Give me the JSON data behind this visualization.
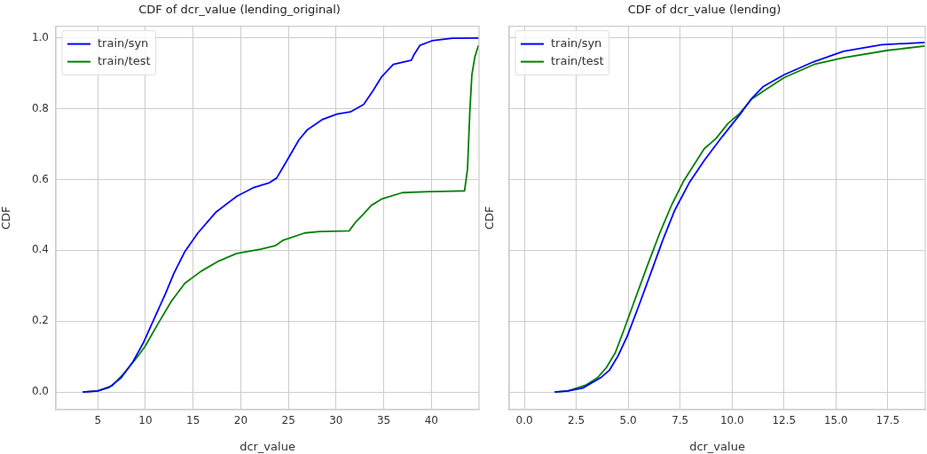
{
  "chart_data": [
    {
      "type": "line",
      "title": "CDF of dcr_value (lending_original)",
      "xlabel": "dcr_value",
      "ylabel": "CDF",
      "xlim": [
        0.6,
        45.0
      ],
      "ylim": [
        -0.05,
        1.033
      ],
      "xticks": [
        5,
        10,
        15,
        20,
        25,
        30,
        35,
        40
      ],
      "yticks": [
        {
          "value": 0,
          "label": "0.0"
        },
        {
          "value": 0.2,
          "label": "0.2"
        },
        {
          "value": 0.4,
          "label": "0.4"
        },
        {
          "value": 0.6,
          "label": "0.6"
        },
        {
          "value": 0.8,
          "label": "0.8"
        },
        {
          "value": 1,
          "label": "1.0"
        }
      ],
      "grid": true,
      "legend": "top left",
      "marker": "none",
      "line_style": "solid",
      "series": [
        {
          "name": "train/syn",
          "color": "#0000ff",
          "x": [
            3.42,
            5.0,
            6.2,
            7.45,
            8.7,
            9.8,
            10.56,
            12.1,
            13.0,
            14.1,
            15.5,
            17.4,
            19.6,
            21.4,
            23.0,
            23.76,
            24.85,
            26.1,
            27.0,
            28.6,
            30.1,
            31.5,
            32.9,
            33.85,
            34.8,
            36.0,
            37.9,
            38.2,
            38.8,
            40.06,
            42.2,
            44.97
          ],
          "values": [
            0,
            0.003,
            0.013,
            0.04,
            0.086,
            0.14,
            0.186,
            0.278,
            0.336,
            0.395,
            0.449,
            0.508,
            0.553,
            0.578,
            0.591,
            0.604,
            0.654,
            0.712,
            0.741,
            0.77,
            0.785,
            0.791,
            0.812,
            0.85,
            0.891,
            0.925,
            0.937,
            0.954,
            0.979,
            0.992,
            0.999,
            1.0
          ]
        },
        {
          "name": "train/test",
          "color": "#008000",
          "x": [
            3.42,
            5.0,
            6.52,
            7.76,
            9.0,
            9.94,
            11.34,
            12.73,
            14.13,
            15.84,
            17.7,
            19.56,
            22.05,
            23.6,
            24.4,
            26.7,
            28.26,
            31.37,
            32.0,
            32.9,
            33.7,
            34.78,
            36.96,
            39.75,
            43.48,
            43.79,
            44.04,
            44.25,
            44.56,
            44.94
          ],
          "values": [
            0,
            0.003,
            0.018,
            0.053,
            0.094,
            0.128,
            0.194,
            0.257,
            0.307,
            0.341,
            0.37,
            0.391,
            0.403,
            0.413,
            0.428,
            0.449,
            0.453,
            0.455,
            0.478,
            0.503,
            0.527,
            0.545,
            0.563,
            0.566,
            0.568,
            0.629,
            0.795,
            0.896,
            0.946,
            0.979
          ]
        }
      ]
    },
    {
      "type": "line",
      "title": "CDF of dcr_value (lending)",
      "xlabel": "dcr_value",
      "ylabel": "CDF",
      "xlim": [
        -0.73,
        19.3
      ],
      "ylim": [
        -0.05,
        1.033
      ],
      "xticks": [
        {
          "value": 0,
          "label": "0.0"
        },
        {
          "value": 2.5,
          "label": "2.5"
        },
        {
          "value": 5,
          "label": "5.0"
        },
        {
          "value": 7.5,
          "label": "7.5"
        },
        {
          "value": 10,
          "label": "10.0"
        },
        {
          "value": 12.5,
          "label": "12.5"
        },
        {
          "value": 15,
          "label": "15.0"
        },
        {
          "value": 17.5,
          "label": "17.5"
        }
      ],
      "yticks": [
        {
          "value": 0,
          "label": null
        },
        {
          "value": 0.2,
          "label": null
        },
        {
          "value": 0.4,
          "label": null
        },
        {
          "value": 0.6,
          "label": null
        },
        {
          "value": 0.8,
          "label": null
        },
        {
          "value": 1,
          "label": null
        }
      ],
      "tick_labels": "x",
      "grid": true,
      "legend": "top left",
      "marker": "none",
      "line_style": "solid",
      "series": [
        {
          "name": "train/syn",
          "color": "#0000ff",
          "x": [
            1.46,
            2.1,
            2.81,
            3.67,
            4.09,
            4.52,
            4.95,
            5.52,
            6.09,
            6.66,
            7.23,
            7.94,
            8.66,
            9.51,
            10.37,
            10.94,
            11.51,
            12.51,
            13.94,
            15.36,
            17.22,
            19.29
          ],
          "values": [
            0,
            0.003,
            0.011,
            0.04,
            0.061,
            0.103,
            0.157,
            0.245,
            0.336,
            0.428,
            0.512,
            0.591,
            0.654,
            0.72,
            0.783,
            0.829,
            0.863,
            0.896,
            0.933,
            0.962,
            0.981,
            0.987
          ]
        },
        {
          "name": "train/test",
          "color": "#008000",
          "x": [
            1.46,
            2.1,
            2.95,
            3.52,
            3.95,
            4.38,
            4.81,
            5.38,
            5.95,
            6.52,
            7.09,
            7.66,
            8.66,
            9.23,
            9.8,
            10.37,
            10.94,
            11.51,
            12.51,
            13.94,
            15.36,
            17.5,
            19.29
          ],
          "values": [
            0,
            0.003,
            0.019,
            0.04,
            0.069,
            0.111,
            0.178,
            0.27,
            0.361,
            0.449,
            0.528,
            0.595,
            0.687,
            0.716,
            0.758,
            0.787,
            0.827,
            0.85,
            0.888,
            0.925,
            0.944,
            0.965,
            0.977
          ]
        }
      ]
    }
  ]
}
